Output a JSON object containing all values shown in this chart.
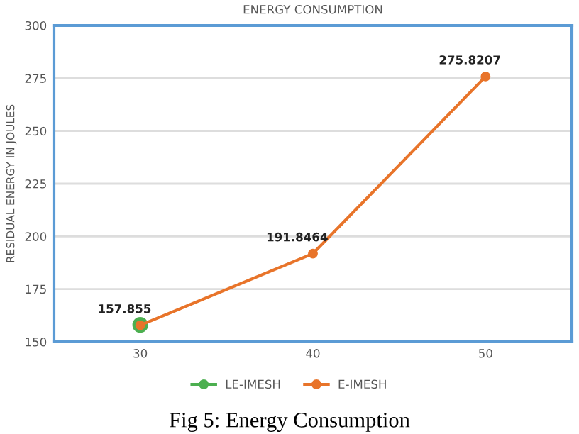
{
  "chart_data": {
    "type": "line",
    "title": "ENERGY CONSUMPTION",
    "ylabel": "RESIDUAL ENERGY IN JOULES",
    "categories": [
      "30",
      "40",
      "50"
    ],
    "series": [
      {
        "name": "LE-IMESH",
        "color": "#4caf50",
        "values": [
          158,
          null,
          null
        ]
      },
      {
        "name": "E-IMESH",
        "color": "#e8742a",
        "values": [
          157.855,
          191.8464,
          275.8207
        ],
        "value_labels": [
          "157.855",
          "191.8464",
          "275.8207"
        ]
      }
    ],
    "ylim": [
      150,
      300
    ],
    "yticks": [
      150,
      175,
      200,
      225,
      250,
      275,
      300
    ],
    "grid": "y",
    "legend": "bottom",
    "marker": "circle",
    "line_style": "solid",
    "annotations": [
      "Fig 5: Energy Consumption"
    ]
  }
}
